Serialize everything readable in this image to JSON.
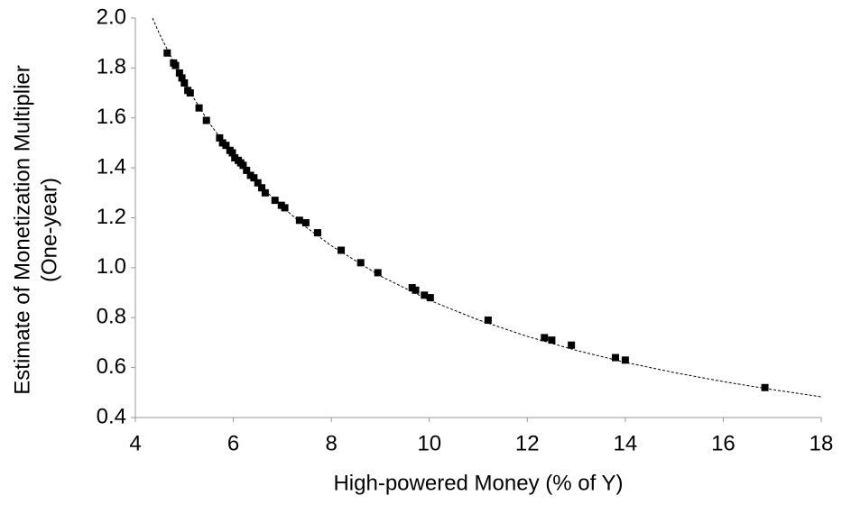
{
  "chart_data": {
    "type": "scatter",
    "xlabel": "High-powered Money (% of Y)",
    "ylabel": [
      "Estimate of Monetization Multiplier",
      "(One-year)"
    ],
    "xlim": [
      4,
      18
    ],
    "xticks": [
      4,
      6,
      8,
      10,
      12,
      14,
      16,
      18
    ],
    "ylim": [
      0.4,
      2.0
    ],
    "yticks": [
      {
        "value": 0.4,
        "label": "0.4"
      },
      {
        "value": 0.6,
        "label": "0.6"
      },
      {
        "value": 0.8,
        "label": "0.8"
      },
      {
        "value": 1.0,
        "label": "1.0"
      },
      {
        "value": 1.2,
        "label": "1.2"
      },
      {
        "value": 1.4,
        "label": "1.4"
      },
      {
        "value": 1.6,
        "label": "1.6"
      },
      {
        "value": 1.8,
        "label": "1.8"
      },
      {
        "value": 2.0,
        "label": "2.0"
      }
    ],
    "grid": false,
    "color": "#000000",
    "x": [
      4.65,
      4.78,
      4.82,
      4.9,
      4.95,
      5.0,
      5.07,
      5.12,
      5.3,
      5.45,
      5.72,
      5.78,
      5.85,
      5.93,
      5.98,
      6.03,
      6.1,
      6.15,
      6.2,
      6.27,
      6.35,
      6.42,
      6.5,
      6.58,
      6.65,
      6.85,
      6.98,
      7.05,
      7.35,
      7.48,
      7.72,
      8.2,
      8.6,
      8.95,
      9.65,
      9.72,
      9.9,
      10.02,
      11.2,
      12.35,
      12.5,
      12.9,
      13.8,
      14.0,
      16.85
    ],
    "values": [
      1.86,
      1.82,
      1.81,
      1.78,
      1.76,
      1.74,
      1.71,
      1.7,
      1.64,
      1.59,
      1.52,
      1.5,
      1.49,
      1.47,
      1.46,
      1.44,
      1.43,
      1.42,
      1.41,
      1.39,
      1.37,
      1.36,
      1.34,
      1.32,
      1.3,
      1.27,
      1.25,
      1.24,
      1.19,
      1.18,
      1.14,
      1.07,
      1.02,
      0.98,
      0.92,
      0.91,
      0.89,
      0.88,
      0.79,
      0.72,
      0.71,
      0.69,
      0.64,
      0.63,
      0.52
    ],
    "trendline": {
      "x": [
        4.35,
        4.5,
        5,
        5.5,
        6,
        6.5,
        7,
        7.5,
        8,
        9,
        10,
        11,
        12,
        13,
        14,
        15,
        16,
        17,
        18
      ],
      "values": [
        2.0,
        1.933,
        1.74,
        1.582,
        1.45,
        1.338,
        1.243,
        1.16,
        1.088,
        0.967,
        0.87,
        0.791,
        0.725,
        0.669,
        0.621,
        0.58,
        0.544,
        0.512,
        0.483
      ]
    }
  }
}
